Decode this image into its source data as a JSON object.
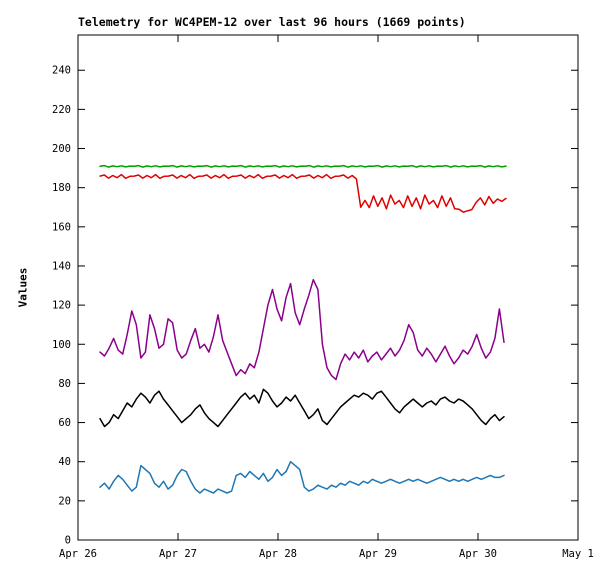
{
  "chart_data": {
    "type": "line",
    "title": "Telemetry for WC4PEM-12 over last 96 hours (1669 points)",
    "xlabel": "",
    "ylabel": "Values",
    "grid": false,
    "legend": "none",
    "xlim": [
      0,
      5
    ],
    "ylim": [
      0,
      258
    ],
    "y_ticks": [
      0,
      20,
      40,
      60,
      80,
      100,
      120,
      140,
      160,
      180,
      200,
      220,
      240
    ],
    "x_ticks": {
      "values": [
        0,
        1,
        2,
        3,
        4,
        5
      ],
      "labels": [
        "Apr 26",
        "Apr 27",
        "Apr 28",
        "Apr 29",
        "Apr 30",
        "May 1"
      ]
    },
    "series": [
      {
        "name": "red-step",
        "color": "#e00000",
        "x0": 0.22,
        "dx": 0.04274,
        "values": [
          185.9,
          186.5,
          184.9,
          186.2,
          185.1,
          186.7,
          184.8,
          185.8,
          185.9,
          186.5,
          184.9,
          186.2,
          185.1,
          186.7,
          184.8,
          185.8,
          185.9,
          186.5,
          184.9,
          186.2,
          185.1,
          186.7,
          184.8,
          185.8,
          185.9,
          186.5,
          184.9,
          186.2,
          185.1,
          186.7,
          184.8,
          185.8,
          185.9,
          186.5,
          184.9,
          186.2,
          185.1,
          186.7,
          184.8,
          185.8,
          185.9,
          186.5,
          184.9,
          186.2,
          185.1,
          186.7,
          184.8,
          185.8,
          185.9,
          186.5,
          184.9,
          186.2,
          185.1,
          186.7,
          184.8,
          185.8,
          185.9,
          186.5,
          184.9,
          186.2,
          184.5,
          170.0,
          173.5,
          169.8,
          175.8,
          170.5,
          174.8,
          169.2,
          176.2,
          171.6,
          173.5,
          169.8,
          175.8,
          170.5,
          174.8,
          169.2,
          176.2,
          171.6,
          173.5,
          169.8,
          175.8,
          170.5,
          174.8,
          169.2,
          169.0,
          167.5,
          168.2,
          168.8,
          172.5,
          174.8,
          171.2,
          175.5,
          172.0,
          174.2,
          173.0,
          174.5
        ]
      },
      {
        "name": "green-flat",
        "color": "#00a000",
        "x0": 0.22,
        "dx": 0.04274,
        "values": [
          190.9,
          191.3,
          190.5,
          191.1,
          190.7,
          191.2,
          190.6,
          191.0,
          190.9,
          191.3,
          190.5,
          191.1,
          190.7,
          191.2,
          190.6,
          191.0,
          190.9,
          191.3,
          190.5,
          191.1,
          190.7,
          191.2,
          190.6,
          191.0,
          190.9,
          191.3,
          190.5,
          191.1,
          190.7,
          191.2,
          190.6,
          191.0,
          190.9,
          191.3,
          190.5,
          191.1,
          190.7,
          191.2,
          190.6,
          191.0,
          190.9,
          191.3,
          190.5,
          191.1,
          190.7,
          191.2,
          190.6,
          191.0,
          190.9,
          191.3,
          190.5,
          191.1,
          190.7,
          191.2,
          190.6,
          191.0,
          190.9,
          191.3,
          190.5,
          191.1,
          190.7,
          191.2,
          190.6,
          191.0,
          190.9,
          191.3,
          190.5,
          191.1,
          190.7,
          191.2,
          190.6,
          191.0,
          190.9,
          191.3,
          190.5,
          191.1,
          190.7,
          191.2,
          190.6,
          191.0,
          190.9,
          191.3,
          190.5,
          191.1,
          190.7,
          191.2,
          190.6,
          191.0,
          190.9,
          191.3,
          190.5,
          191.1,
          190.7,
          191.2,
          190.6,
          191.0
        ]
      },
      {
        "name": "purple-mid",
        "color": "#8b008b",
        "x0": 0.22,
        "dx": 0.04539,
        "values": [
          96,
          94,
          98,
          103,
          97,
          95,
          105,
          117,
          110,
          93,
          96,
          115,
          108,
          98,
          100,
          113,
          111,
          97,
          93,
          95,
          102,
          108,
          98,
          100,
          96,
          104,
          115,
          102,
          96,
          90,
          84,
          87,
          85,
          90,
          88,
          96,
          108,
          120,
          128,
          118,
          112,
          124,
          131,
          116,
          110,
          118,
          125,
          133,
          128,
          100,
          88,
          84,
          82,
          90,
          95,
          92,
          96,
          93,
          97,
          91,
          94,
          96,
          92,
          95,
          98,
          94,
          97,
          102,
          110,
          106,
          97,
          94,
          98,
          95,
          91,
          95,
          99,
          94,
          90,
          93,
          97,
          95,
          99,
          105,
          98,
          93,
          96,
          103,
          118,
          101
        ]
      },
      {
        "name": "black-low",
        "color": "#000000",
        "x0": 0.22,
        "dx": 0.04539,
        "values": [
          62,
          58,
          60,
          64,
          62,
          66,
          70,
          68,
          72,
          75,
          73,
          70,
          74,
          76,
          72,
          69,
          66,
          63,
          60,
          62,
          64,
          67,
          69,
          65,
          62,
          60,
          58,
          61,
          64,
          67,
          70,
          73,
          75,
          72,
          74,
          70,
          77,
          75,
          71,
          68,
          70,
          73,
          71,
          74,
          70,
          66,
          62,
          64,
          67,
          61,
          59,
          62,
          65,
          68,
          70,
          72,
          74,
          73,
          75,
          74,
          72,
          75,
          76,
          73,
          70,
          67,
          65,
          68,
          70,
          72,
          70,
          68,
          70,
          71,
          69,
          72,
          73,
          71,
          70,
          72,
          71,
          69,
          67,
          64,
          61,
          59,
          62,
          64,
          61,
          63
        ]
      },
      {
        "name": "blue-bottom",
        "color": "#1f77b4",
        "x0": 0.22,
        "dx": 0.04539,
        "values": [
          27,
          29,
          26,
          30,
          33,
          31,
          28,
          25,
          27,
          38,
          36,
          34,
          29,
          27,
          30,
          26,
          28,
          33,
          36,
          35,
          30,
          26,
          24,
          26,
          25,
          24,
          26,
          25,
          24,
          25,
          33,
          34,
          32,
          35,
          33,
          31,
          34,
          30,
          32,
          36,
          33,
          35,
          40,
          38,
          36,
          27,
          25,
          26,
          28,
          27,
          26,
          28,
          27,
          29,
          28,
          30,
          29,
          28,
          30,
          29,
          31,
          30,
          29,
          30,
          31,
          30,
          29,
          30,
          31,
          30,
          31,
          30,
          29,
          30,
          31,
          32,
          31,
          30,
          31,
          30,
          31,
          30,
          31,
          32,
          31,
          32,
          33,
          32,
          32,
          33
        ]
      }
    ]
  }
}
